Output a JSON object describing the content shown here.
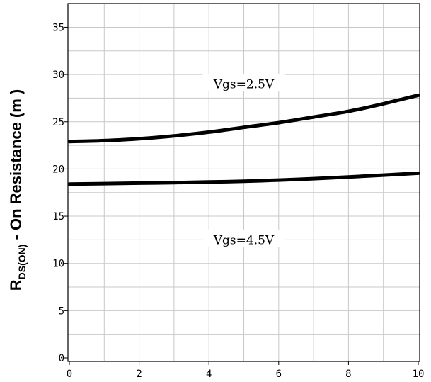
{
  "chart_data": {
    "type": "line",
    "ylabel_main": "R",
    "ylabel_sub": "DS(ON)",
    "ylabel_rest": " - On Resistance (m   )",
    "xlim": [
      0,
      10
    ],
    "ylim": [
      0,
      37.5
    ],
    "x_ticks": [
      "0",
      "2",
      "4",
      "6",
      "8",
      "10"
    ],
    "y_ticks": [
      "0",
      "5",
      "10",
      "15",
      "20",
      "25",
      "30",
      "35"
    ],
    "grid": true,
    "series": [
      {
        "name": "Vgs=2.5V",
        "x": [
          0,
          1,
          2,
          3,
          4,
          5,
          6,
          7,
          8,
          9,
          10
        ],
        "values": [
          22.9,
          23.0,
          23.2,
          23.5,
          23.9,
          24.4,
          24.9,
          25.5,
          26.1,
          26.9,
          27.8
        ]
      },
      {
        "name": "Vgs=4.5V",
        "x": [
          0,
          1,
          2,
          3,
          4,
          5,
          6,
          7,
          8,
          9,
          10
        ],
        "values": [
          18.4,
          18.45,
          18.5,
          18.55,
          18.62,
          18.7,
          18.82,
          18.97,
          19.15,
          19.35,
          19.55
        ]
      }
    ],
    "annotations": [
      {
        "text": "Vgs=2.5V",
        "x": 5.0,
        "y": 29.0
      },
      {
        "text": "Vgs=4.5V",
        "x": 5.0,
        "y": 12.5
      }
    ],
    "line_color": "#000000",
    "grid_color": "#c8c8c8"
  }
}
